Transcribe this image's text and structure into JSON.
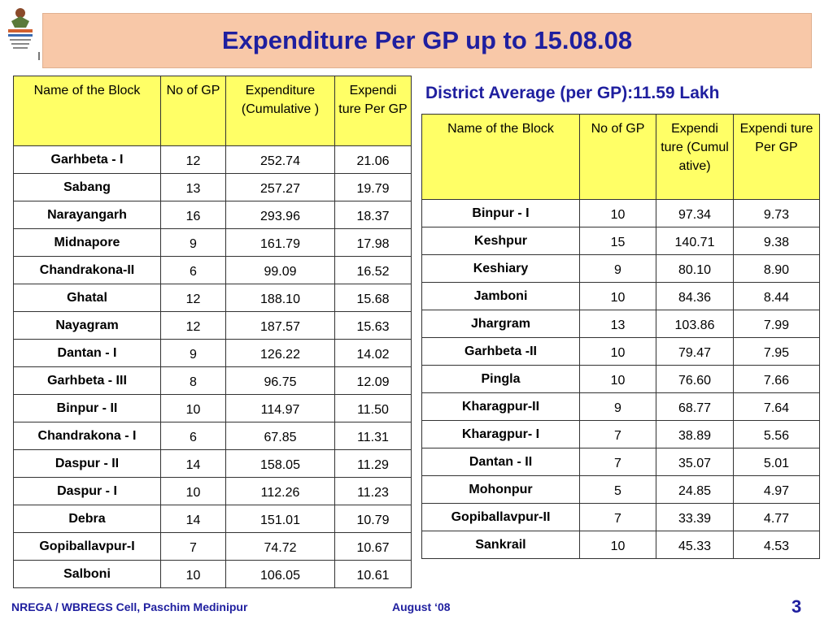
{
  "title": "Expenditure Per GP up to 15.08.08",
  "district_average": "District Average (per GP):11.59 Lakh",
  "left_table": {
    "headers": [
      "Name of the Block",
      "No of GP",
      "Expenditure (Cumulative )",
      "Expendi ture Per GP"
    ],
    "rows": [
      [
        "Garhbeta - I",
        "12",
        "252.74",
        "21.06"
      ],
      [
        "Sabang",
        "13",
        "257.27",
        "19.79"
      ],
      [
        "Narayangarh",
        "16",
        "293.96",
        "18.37"
      ],
      [
        "Midnapore",
        "9",
        "161.79",
        "17.98"
      ],
      [
        "Chandrakona-II",
        "6",
        "99.09",
        "16.52"
      ],
      [
        "Ghatal",
        "12",
        "188.10",
        "15.68"
      ],
      [
        "Nayagram",
        "12",
        "187.57",
        "15.63"
      ],
      [
        "Dantan - I",
        "9",
        "126.22",
        "14.02"
      ],
      [
        "Garhbeta - III",
        "8",
        "96.75",
        "12.09"
      ],
      [
        "Binpur - II",
        "10",
        "114.97",
        "11.50"
      ],
      [
        "Chandrakona - I",
        "6",
        "67.85",
        "11.31"
      ],
      [
        "Daspur - II",
        "14",
        "158.05",
        "11.29"
      ],
      [
        "Daspur - I",
        "10",
        "112.26",
        "11.23"
      ],
      [
        "Debra",
        "14",
        "151.01",
        "10.79"
      ],
      [
        "Gopiballavpur-I",
        "7",
        "74.72",
        "10.67"
      ],
      [
        "Salboni",
        "10",
        "106.05",
        "10.61"
      ]
    ]
  },
  "right_table": {
    "headers": [
      "Name of the Block",
      "No of GP",
      "Expendi ture (Cumul ative)",
      "Expendi ture Per GP"
    ],
    "rows": [
      [
        "Binpur - I",
        "10",
        "97.34",
        "9.73"
      ],
      [
        "Keshpur",
        "15",
        "140.71",
        "9.38"
      ],
      [
        "Keshiary",
        "9",
        "80.10",
        "8.90"
      ],
      [
        "Jamboni",
        "10",
        "84.36",
        "8.44"
      ],
      [
        "Jhargram",
        "13",
        "103.86",
        "7.99"
      ],
      [
        "Garhbeta -II",
        "10",
        "79.47",
        "7.95"
      ],
      [
        "Pingla",
        "10",
        "76.60",
        "7.66"
      ],
      [
        "Kharagpur-II",
        "9",
        "68.77",
        "7.64"
      ],
      [
        "Kharagpur- I",
        "7",
        "38.89",
        "5.56"
      ],
      [
        "Dantan - II",
        "7",
        "35.07",
        "5.01"
      ],
      [
        "Mohonpur",
        "5",
        "24.85",
        "4.97"
      ],
      [
        "Gopiballavpur-II",
        "7",
        "33.39",
        "4.77"
      ],
      [
        "Sankrail",
        "10",
        "45.33",
        "4.53"
      ]
    ]
  },
  "footer": {
    "left": "NREGA / WBREGS Cell, Paschim Medinipur",
    "date": "August ‘08",
    "page": "3"
  },
  "colors": {
    "title_bg": "#f8c8a8",
    "header_bg": "#ffff66",
    "title_text": "#1f1f9f"
  }
}
